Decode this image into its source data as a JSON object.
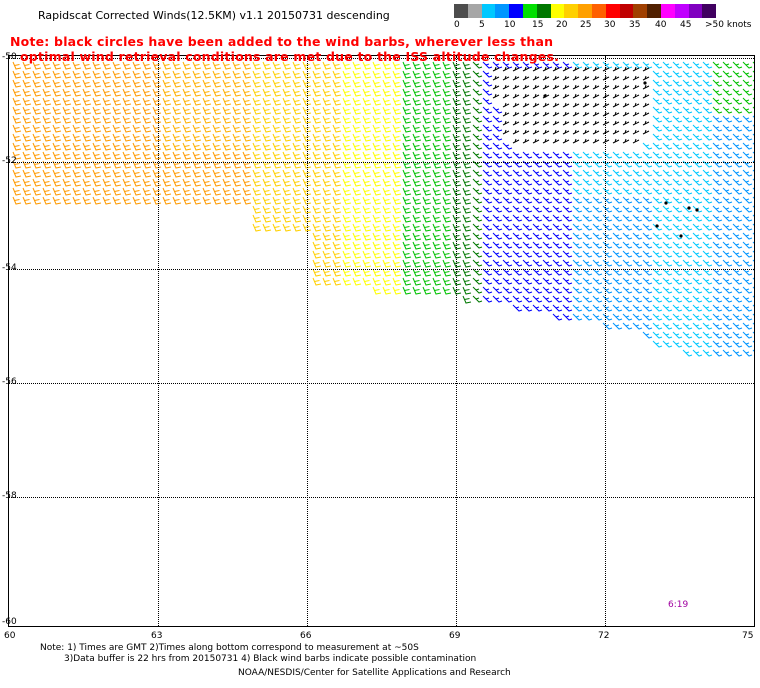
{
  "title": "Rapidscat Corrected Winds(12.5KM) v1.1 20150731 descending",
  "note": {
    "line1": "Note: black circles have been added to the wind barbs, wherever less than",
    "line2": "optimal wind retrieval conditions are met due to the ISS altitude changes."
  },
  "legend": {
    "colors": [
      "#4d4d4d",
      "#a6a6a6",
      "#00c8ff",
      "#0096ff",
      "#0000ff",
      "#00e000",
      "#007800",
      "#ffff00",
      "#ffd000",
      "#ffa000",
      "#ff6000",
      "#ff0000",
      "#c00000",
      "#a04000",
      "#502000",
      "#ff00ff",
      "#c000ff",
      "#8000c0",
      "#400060"
    ],
    "labels": [
      "0",
      "5",
      "10",
      "15",
      "20",
      "25",
      "30",
      "35",
      "40",
      "45",
      ">50 knots"
    ],
    "units": "knots"
  },
  "axes": {
    "lat_labels": [
      "-50",
      "-52",
      "-54",
      "-56",
      "-58",
      "-60"
    ],
    "lon_labels": [
      "60",
      "63",
      "66",
      "69",
      "72",
      "75"
    ]
  },
  "time_label": "6:19",
  "footer": {
    "line1": "Note: 1) Times are GMT 2)Times along bottom correspond to measurement at ~50S",
    "line2": "3)Data buffer is 22 hrs from 20150731 4) Black wind barbs indicate possible contamination",
    "line3": "NOAA/NESDIS/Center for Satellite Applications and Research"
  }
}
